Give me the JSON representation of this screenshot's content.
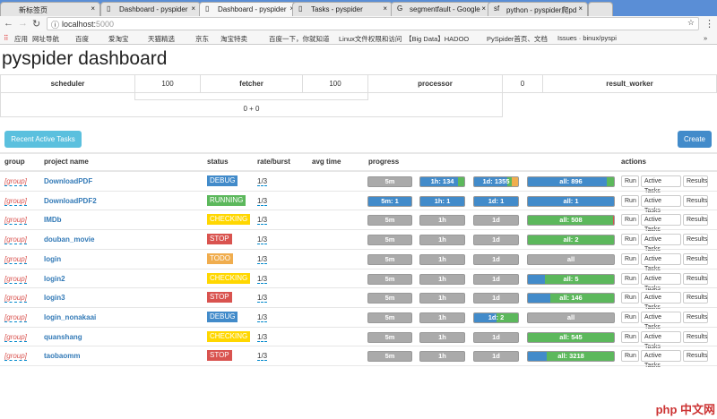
{
  "browser": {
    "tabs": [
      {
        "label": "新标签页",
        "icon": "none"
      },
      {
        "label": "Dashboard - pyspider",
        "icon": "page-icon"
      },
      {
        "label": "Dashboard - pyspider",
        "icon": "page-icon",
        "active": true
      },
      {
        "label": "Tasks - pyspider",
        "icon": "page-icon"
      },
      {
        "label": "segmentfault - Google",
        "icon": "google-icon"
      },
      {
        "label": "python - pyspider爬pd",
        "icon": "sf-icon"
      }
    ],
    "url_host": "localhost:",
    "url_port": "5000",
    "bookmarks": [
      "应用",
      "网址导航",
      "百度",
      "爱淘宝",
      "天猫精选",
      "京东",
      "淘宝特卖",
      "",
      "百度一下，你就知道",
      "Linux文件权限和访问",
      "【Big Data】HADOO",
      "PySpider首页、文档",
      "Issues · binux/pyspi"
    ]
  },
  "title": "pyspider dashboard",
  "queues": {
    "scheduler": "scheduler",
    "scheduler_fetcher": "100",
    "fetcher": "fetcher",
    "fetcher_processor": "100",
    "processor": "processor",
    "processor_result": "0",
    "result_worker": "result_worker",
    "bottom": "0 + 0"
  },
  "buttons": {
    "recent": "Recent Active Tasks",
    "create": "Create"
  },
  "colors": {
    "primary": "#428bca",
    "success": "#5cb85c",
    "warning": "#f0ad4e",
    "danger": "#d9534f",
    "info": "#5bc0de",
    "checking": "#ffd700",
    "gray": "#aaaaaa"
  },
  "table": {
    "headers": [
      "group",
      "project name",
      "status",
      "rate/burst",
      "avg time",
      "progress",
      "actions"
    ],
    "actions": [
      "Run",
      "Active Tasks",
      "Results"
    ],
    "rows": [
      {
        "group": "[group]",
        "name": "DownloadPDF",
        "status": "DEBUG",
        "rate": "1/3",
        "progress": [
          {
            "label": "5m",
            "segs": []
          },
          {
            "label": "1h: 134",
            "segs": [
              [
                "primary",
                0.85
              ],
              [
                "success",
                0.15
              ]
            ]
          },
          {
            "label": "1d: 1355",
            "segs": [
              [
                "primary",
                0.75
              ],
              [
                "success",
                0.1
              ],
              [
                "warning",
                0.15
              ]
            ]
          },
          {
            "label": "all: 896",
            "segs": [
              [
                "primary",
                0.92
              ],
              [
                "success",
                0.08
              ]
            ]
          }
        ]
      },
      {
        "group": "[group]",
        "name": "DownloadPDF2",
        "status": "RUNNING",
        "rate": "1/3",
        "progress": [
          {
            "label": "5m: 1",
            "segs": [
              [
                "primary",
                1
              ]
            ]
          },
          {
            "label": "1h: 1",
            "segs": [
              [
                "primary",
                1
              ]
            ]
          },
          {
            "label": "1d: 1",
            "segs": [
              [
                "primary",
                1
              ]
            ]
          },
          {
            "label": "all: 1",
            "segs": [
              [
                "primary",
                1
              ]
            ]
          }
        ]
      },
      {
        "group": "[group]",
        "name": "IMDb",
        "status": "CHECKING",
        "rate": "1/3",
        "progress": [
          {
            "label": "5m",
            "segs": []
          },
          {
            "label": "1h",
            "segs": []
          },
          {
            "label": "1d",
            "segs": []
          },
          {
            "label": "all: 508",
            "segs": [
              [
                "success",
                0.99
              ],
              [
                "danger",
                0.01
              ]
            ]
          }
        ]
      },
      {
        "group": "[group]",
        "name": "douban_movie",
        "status": "STOP",
        "rate": "1/3",
        "progress": [
          {
            "label": "5m",
            "segs": []
          },
          {
            "label": "1h",
            "segs": []
          },
          {
            "label": "1d",
            "segs": []
          },
          {
            "label": "all: 2",
            "segs": [
              [
                "success",
                1
              ]
            ]
          }
        ]
      },
      {
        "group": "[group]",
        "name": "login",
        "status": "TODO",
        "rate": "1/3",
        "progress": [
          {
            "label": "5m",
            "segs": []
          },
          {
            "label": "1h",
            "segs": []
          },
          {
            "label": "1d",
            "segs": []
          },
          {
            "label": "all",
            "segs": []
          }
        ]
      },
      {
        "group": "[group]",
        "name": "login2",
        "status": "CHECKING",
        "rate": "1/3",
        "progress": [
          {
            "label": "5m",
            "segs": []
          },
          {
            "label": "1h",
            "segs": []
          },
          {
            "label": "1d",
            "segs": []
          },
          {
            "label": "all: 5",
            "segs": [
              [
                "primary",
                0.2
              ],
              [
                "success",
                0.8
              ]
            ]
          }
        ]
      },
      {
        "group": "[group]",
        "name": "login3",
        "status": "STOP",
        "rate": "1/3",
        "progress": [
          {
            "label": "5m",
            "segs": []
          },
          {
            "label": "1h",
            "segs": []
          },
          {
            "label": "1d",
            "segs": []
          },
          {
            "label": "all: 146",
            "segs": [
              [
                "primary",
                0.26
              ],
              [
                "success",
                0.74
              ]
            ]
          }
        ]
      },
      {
        "group": "[group]",
        "name": "login_nonakaai",
        "status": "DEBUG",
        "rate": "1/3",
        "progress": [
          {
            "label": "5m",
            "segs": []
          },
          {
            "label": "1h",
            "segs": []
          },
          {
            "label": "1d: 2",
            "segs": [
              [
                "primary",
                0.5
              ],
              [
                "success",
                0.5
              ]
            ]
          },
          {
            "label": "all",
            "segs": []
          }
        ]
      },
      {
        "group": "[group]",
        "name": "quanshang",
        "status": "CHECKING",
        "rate": "1/3",
        "progress": [
          {
            "label": "5m",
            "segs": []
          },
          {
            "label": "1h",
            "segs": []
          },
          {
            "label": "1d",
            "segs": []
          },
          {
            "label": "all: 545",
            "segs": [
              [
                "success",
                1
              ]
            ]
          }
        ]
      },
      {
        "group": "[group]",
        "name": "taobaomm",
        "status": "STOP",
        "rate": "1/3",
        "progress": [
          {
            "label": "5m",
            "segs": []
          },
          {
            "label": "1h",
            "segs": []
          },
          {
            "label": "1d",
            "segs": []
          },
          {
            "label": "all: 3218",
            "segs": [
              [
                "primary",
                0.22
              ],
              [
                "success",
                0.78
              ]
            ]
          }
        ]
      }
    ]
  },
  "status_colors": {
    "DEBUG": "#428bca",
    "RUNNING": "#5cb85c",
    "CHECKING": "#ffd700",
    "STOP": "#d9534f",
    "TODO": "#f0ad4e"
  },
  "watermark": "php 中文网"
}
